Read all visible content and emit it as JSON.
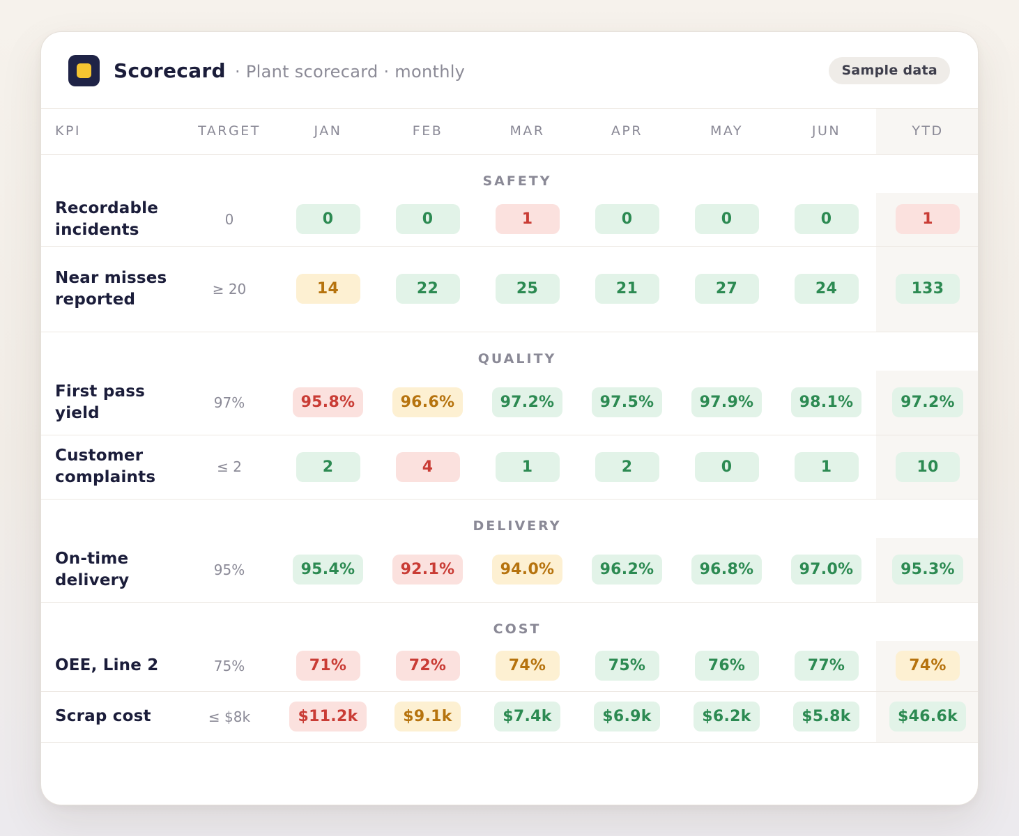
{
  "header": {
    "title": "Scorecard",
    "subtitle": "· Plant scorecard · monthly",
    "badge": "Sample data"
  },
  "columns": [
    "KPI",
    "TARGET",
    "JAN",
    "FEB",
    "MAR",
    "APR",
    "MAY",
    "JUN",
    "YTD"
  ],
  "sections": [
    {
      "label": "SAFETY",
      "rows": [
        {
          "kpi": "Recordable incidents",
          "target": "0",
          "cells": [
            {
              "v": "0",
              "s": "good"
            },
            {
              "v": "0",
              "s": "good"
            },
            {
              "v": "1",
              "s": "bad"
            },
            {
              "v": "0",
              "s": "good"
            },
            {
              "v": "0",
              "s": "good"
            },
            {
              "v": "0",
              "s": "good"
            },
            {
              "v": "1",
              "s": "bad"
            }
          ]
        },
        {
          "kpi": "Near misses reported",
          "target": "≥ 20",
          "cells": [
            {
              "v": "14",
              "s": "warn"
            },
            {
              "v": "22",
              "s": "good"
            },
            {
              "v": "25",
              "s": "good"
            },
            {
              "v": "21",
              "s": "good"
            },
            {
              "v": "27",
              "s": "good"
            },
            {
              "v": "24",
              "s": "good"
            },
            {
              "v": "133",
              "s": "good"
            }
          ]
        }
      ]
    },
    {
      "label": "QUALITY",
      "rows": [
        {
          "kpi": "First pass yield",
          "target": "97%",
          "cells": [
            {
              "v": "95.8%",
              "s": "bad"
            },
            {
              "v": "96.6%",
              "s": "warn"
            },
            {
              "v": "97.2%",
              "s": "good"
            },
            {
              "v": "97.5%",
              "s": "good"
            },
            {
              "v": "97.9%",
              "s": "good"
            },
            {
              "v": "98.1%",
              "s": "good"
            },
            {
              "v": "97.2%",
              "s": "good"
            }
          ]
        },
        {
          "kpi": "Customer complaints",
          "target": "≤ 2",
          "cells": [
            {
              "v": "2",
              "s": "good"
            },
            {
              "v": "4",
              "s": "bad"
            },
            {
              "v": "1",
              "s": "good"
            },
            {
              "v": "2",
              "s": "good"
            },
            {
              "v": "0",
              "s": "good"
            },
            {
              "v": "1",
              "s": "good"
            },
            {
              "v": "10",
              "s": "good"
            }
          ]
        }
      ]
    },
    {
      "label": "DELIVERY",
      "rows": [
        {
          "kpi": "On-time delivery",
          "target": "95%",
          "cells": [
            {
              "v": "95.4%",
              "s": "good"
            },
            {
              "v": "92.1%",
              "s": "bad"
            },
            {
              "v": "94.0%",
              "s": "warn"
            },
            {
              "v": "96.2%",
              "s": "good"
            },
            {
              "v": "96.8%",
              "s": "good"
            },
            {
              "v": "97.0%",
              "s": "good"
            },
            {
              "v": "95.3%",
              "s": "good"
            }
          ]
        }
      ]
    },
    {
      "label": "COST",
      "rows": [
        {
          "kpi": "OEE, Line 2",
          "target": "75%",
          "cells": [
            {
              "v": "71%",
              "s": "bad"
            },
            {
              "v": "72%",
              "s": "bad"
            },
            {
              "v": "74%",
              "s": "warn"
            },
            {
              "v": "75%",
              "s": "good"
            },
            {
              "v": "76%",
              "s": "good"
            },
            {
              "v": "77%",
              "s": "good"
            },
            {
              "v": "74%",
              "s": "warn"
            }
          ]
        },
        {
          "kpi": "Scrap cost",
          "target": "≤ $8k",
          "cells": [
            {
              "v": "$11.2k",
              "s": "bad"
            },
            {
              "v": "$9.1k",
              "s": "warn"
            },
            {
              "v": "$7.4k",
              "s": "good"
            },
            {
              "v": "$6.9k",
              "s": "good"
            },
            {
              "v": "$6.2k",
              "s": "good"
            },
            {
              "v": "$5.8k",
              "s": "good"
            },
            {
              "v": "$46.6k",
              "s": "good"
            }
          ]
        }
      ]
    }
  ],
  "colors": {
    "good": "#2c8a52",
    "warn": "#b6730e",
    "bad": "#c93c35",
    "logo": "#1f2346",
    "logo_dot": "#f5c431"
  }
}
